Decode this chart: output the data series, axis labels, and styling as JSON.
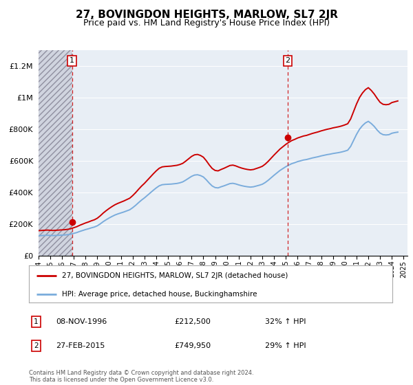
{
  "title": "27, BOVINGDON HEIGHTS, MARLOW, SL7 2JR",
  "subtitle": "Price paid vs. HM Land Registry's House Price Index (HPI)",
  "title_fontsize": 11,
  "subtitle_fontsize": 9,
  "legend_line1": "27, BOVINGDON HEIGHTS, MARLOW, SL7 2JR (detached house)",
  "legend_line2": "HPI: Average price, detached house, Buckinghamshire",
  "red_color": "#cc0000",
  "blue_color": "#7aacdc",
  "annotation1_date": "08-NOV-1996",
  "annotation1_price": "£212,500",
  "annotation1_hpi": "32% ↑ HPI",
  "annotation2_date": "27-FEB-2015",
  "annotation2_price": "£749,950",
  "annotation2_hpi": "29% ↑ HPI",
  "footer": "Contains HM Land Registry data © Crown copyright and database right 2024.\nThis data is licensed under the Open Government Licence v3.0.",
  "ylim": [
    0,
    1300000
  ],
  "yticks": [
    0,
    200000,
    400000,
    600000,
    800000,
    1000000,
    1200000
  ],
  "ytick_labels": [
    "£0",
    "£200K",
    "£400K",
    "£600K",
    "£800K",
    "£1M",
    "£1.2M"
  ],
  "purchase1_x": 1996.85,
  "purchase1_y": 212500,
  "purchase2_x": 2015.15,
  "purchase2_y": 749950,
  "vline1_x": 1996.85,
  "vline2_x": 2015.15,
  "xmin": 1994.0,
  "xmax": 2025.3,
  "hpi_data_x": [
    1994.0,
    1994.25,
    1994.5,
    1994.75,
    1995.0,
    1995.25,
    1995.5,
    1995.75,
    1996.0,
    1996.25,
    1996.5,
    1996.75,
    1997.0,
    1997.25,
    1997.5,
    1997.75,
    1998.0,
    1998.25,
    1998.5,
    1998.75,
    1999.0,
    1999.25,
    1999.5,
    1999.75,
    2000.0,
    2000.25,
    2000.5,
    2000.75,
    2001.0,
    2001.25,
    2001.5,
    2001.75,
    2002.0,
    2002.25,
    2002.5,
    2002.75,
    2003.0,
    2003.25,
    2003.5,
    2003.75,
    2004.0,
    2004.25,
    2004.5,
    2004.75,
    2005.0,
    2005.25,
    2005.5,
    2005.75,
    2006.0,
    2006.25,
    2006.5,
    2006.75,
    2007.0,
    2007.25,
    2007.5,
    2007.75,
    2008.0,
    2008.25,
    2008.5,
    2008.75,
    2009.0,
    2009.25,
    2009.5,
    2009.75,
    2010.0,
    2010.25,
    2010.5,
    2010.75,
    2011.0,
    2011.25,
    2011.5,
    2011.75,
    2012.0,
    2012.25,
    2012.5,
    2012.75,
    2013.0,
    2013.25,
    2013.5,
    2013.75,
    2014.0,
    2014.25,
    2014.5,
    2014.75,
    2015.0,
    2015.25,
    2015.5,
    2015.75,
    2016.0,
    2016.25,
    2016.5,
    2016.75,
    2017.0,
    2017.25,
    2017.5,
    2017.75,
    2018.0,
    2018.25,
    2018.5,
    2018.75,
    2019.0,
    2019.25,
    2019.5,
    2019.75,
    2020.0,
    2020.25,
    2020.5,
    2020.75,
    2021.0,
    2021.25,
    2021.5,
    2021.75,
    2022.0,
    2022.25,
    2022.5,
    2022.75,
    2023.0,
    2023.25,
    2023.5,
    2023.75,
    2024.0,
    2024.25,
    2024.5
  ],
  "hpi_data_y": [
    128000,
    129000,
    130000,
    131000,
    130000,
    129000,
    130000,
    131000,
    132000,
    133000,
    135000,
    138000,
    143000,
    148000,
    155000,
    161000,
    167000,
    172000,
    178000,
    183000,
    191000,
    203000,
    217000,
    229000,
    240000,
    250000,
    259000,
    266000,
    272000,
    278000,
    285000,
    292000,
    305000,
    320000,
    337000,
    353000,
    367000,
    383000,
    399000,
    415000,
    430000,
    443000,
    450000,
    452000,
    453000,
    454000,
    456000,
    458000,
    462000,
    468000,
    479000,
    491000,
    503000,
    511000,
    513000,
    508000,
    499000,
    481000,
    460000,
    442000,
    432000,
    430000,
    437000,
    443000,
    450000,
    457000,
    459000,
    455000,
    449000,
    444000,
    440000,
    437000,
    435000,
    437000,
    442000,
    447000,
    453000,
    464000,
    478000,
    494000,
    510000,
    525000,
    540000,
    552000,
    564000,
    574000,
    583000,
    589000,
    596000,
    601000,
    606000,
    609000,
    614000,
    619000,
    623000,
    627000,
    632000,
    636000,
    640000,
    643000,
    647000,
    650000,
    653000,
    657000,
    662000,
    668000,
    692000,
    730000,
    768000,
    800000,
    823000,
    840000,
    850000,
    836000,
    818000,
    795000,
    776000,
    766000,
    764000,
    766000,
    775000,
    779000,
    782000
  ],
  "red_data_x": [
    1994.0,
    1994.25,
    1994.5,
    1994.75,
    1995.0,
    1995.25,
    1995.5,
    1995.75,
    1996.0,
    1996.25,
    1996.5,
    1996.75,
    1997.0,
    1997.25,
    1997.5,
    1997.75,
    1998.0,
    1998.25,
    1998.5,
    1998.75,
    1999.0,
    1999.25,
    1999.5,
    1999.75,
    2000.0,
    2000.25,
    2000.5,
    2000.75,
    2001.0,
    2001.25,
    2001.5,
    2001.75,
    2002.0,
    2002.25,
    2002.5,
    2002.75,
    2003.0,
    2003.25,
    2003.5,
    2003.75,
    2004.0,
    2004.25,
    2004.5,
    2004.75,
    2005.0,
    2005.25,
    2005.5,
    2005.75,
    2006.0,
    2006.25,
    2006.5,
    2006.75,
    2007.0,
    2007.25,
    2007.5,
    2007.75,
    2008.0,
    2008.25,
    2008.5,
    2008.75,
    2009.0,
    2009.25,
    2009.5,
    2009.75,
    2010.0,
    2010.25,
    2010.5,
    2010.75,
    2011.0,
    2011.25,
    2011.5,
    2011.75,
    2012.0,
    2012.25,
    2012.5,
    2012.75,
    2013.0,
    2013.25,
    2013.5,
    2013.75,
    2014.0,
    2014.25,
    2014.5,
    2014.75,
    2015.0,
    2015.25,
    2015.5,
    2015.75,
    2016.0,
    2016.25,
    2016.5,
    2016.75,
    2017.0,
    2017.25,
    2017.5,
    2017.75,
    2018.0,
    2018.25,
    2018.5,
    2018.75,
    2019.0,
    2019.25,
    2019.5,
    2019.75,
    2020.0,
    2020.25,
    2020.5,
    2020.75,
    2021.0,
    2021.25,
    2021.5,
    2021.75,
    2022.0,
    2022.25,
    2022.5,
    2022.75,
    2023.0,
    2023.25,
    2023.5,
    2023.75,
    2024.0,
    2024.25,
    2024.5
  ],
  "red_data_y": [
    160000,
    161250,
    162500,
    163750,
    162500,
    161250,
    162500,
    163750,
    165000,
    166250,
    168750,
    172500,
    178750,
    185000,
    193750,
    201250,
    208750,
    215000,
    222500,
    228750,
    238750,
    253750,
    271250,
    286250,
    300000,
    312500,
    323750,
    332500,
    340000,
    347500,
    356250,
    365000,
    381250,
    400000,
    421250,
    441250,
    458750,
    478750,
    498750,
    518750,
    537500,
    553750,
    562500,
    565000,
    566250,
    567500,
    570000,
    572500,
    577500,
    585000,
    598750,
    613750,
    628750,
    638750,
    641250,
    635000,
    623750,
    601250,
    575000,
    552500,
    540000,
    537500,
    546250,
    553750,
    562500,
    571250,
    573750,
    568750,
    561250,
    555000,
    550000,
    546250,
    543750,
    546250,
    552500,
    558750,
    566250,
    580000,
    597500,
    617500,
    637500,
    656250,
    675000,
    690000,
    705000,
    717500,
    728750,
    736250,
    745000,
    751250,
    757500,
    761250,
    767500,
    773750,
    778750,
    783750,
    790000,
    795000,
    800000,
    803750,
    808750,
    812500,
    816250,
    821250,
    827500,
    835000,
    865000,
    912500,
    960000,
    1000000,
    1028750,
    1050000,
    1062500,
    1045000,
    1022500,
    995000,
    970000,
    957500,
    955000,
    957500,
    968750,
    973750,
    978750
  ]
}
